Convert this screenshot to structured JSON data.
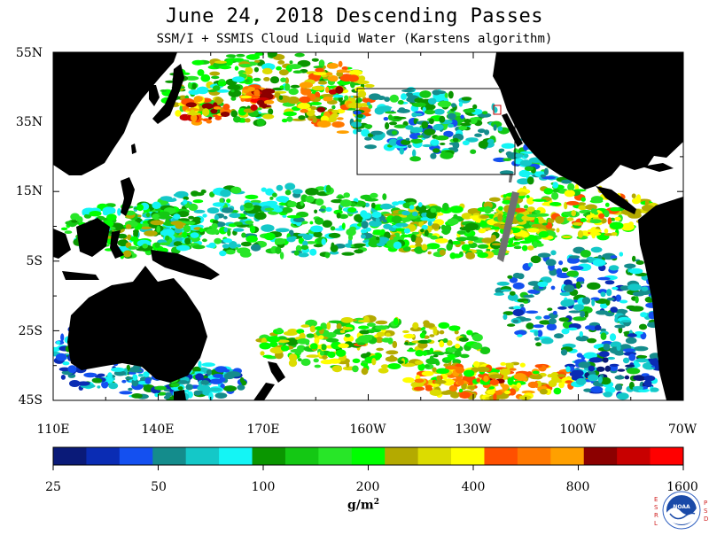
{
  "title": "June 24, 2018  Descending Passes",
  "subtitle": "SSM/I + SSMIS Cloud Liquid Water (Karstens algorithm)",
  "map": {
    "lat_labels": [
      "55N",
      "35N",
      "15N",
      "5S",
      "25S",
      "45S"
    ],
    "lon_labels": [
      "110E",
      "140E",
      "170E",
      "160W",
      "130W",
      "100W",
      "70W"
    ],
    "lat_range": [
      -45,
      55
    ],
    "lon_range_east": [
      110,
      290
    ],
    "colors": {
      "land": "#000000",
      "no_data_swath": "#707070",
      "clear_ocean": "#ffffff"
    }
  },
  "colorbar": {
    "colors": [
      "#0a1a78",
      "#0a2cb4",
      "#1450f0",
      "#148c8c",
      "#14c8c8",
      "#14f5f5",
      "#0a9600",
      "#14c814",
      "#28e628",
      "#00ff00",
      "#b4aa00",
      "#dcdc00",
      "#ffff00",
      "#ff5000",
      "#ff7800",
      "#ffa000",
      "#8c0000",
      "#c80000",
      "#ff0000"
    ],
    "tick_labels": [
      "25",
      "50",
      "100",
      "200",
      "400",
      "800",
      "1600"
    ],
    "unit": "g/m",
    "unit_sup": "2"
  },
  "logo": {
    "text": "NOAA",
    "left_letters": [
      "E",
      "S",
      "R",
      "L"
    ],
    "right_letters": [
      "P",
      "S",
      "D"
    ]
  }
}
